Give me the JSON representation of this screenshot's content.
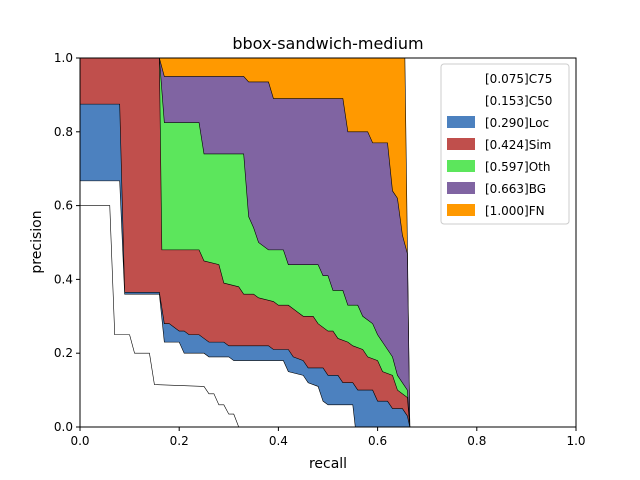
{
  "chart_data": {
    "type": "area",
    "title": "bbox-sandwich-medium",
    "xlabel": "recall",
    "ylabel": "precision",
    "xlim": [
      0,
      1
    ],
    "ylim": [
      0,
      1
    ],
    "x_ticks": [
      "0.0",
      "0.2",
      "0.4",
      "0.6",
      "0.8",
      "1.0"
    ],
    "y_ticks": [
      "0.0",
      "0.2",
      "0.4",
      "0.6",
      "0.8",
      "1.0"
    ],
    "grid": false,
    "legend_position": "top-right",
    "series": [
      {
        "name": "[0.075]C75",
        "color": "#ffffff",
        "points": [
          [
            0,
            0.6
          ],
          [
            0.06,
            0.6
          ],
          [
            0.07,
            0.25
          ],
          [
            0.1,
            0.25
          ],
          [
            0.11,
            0.2
          ],
          [
            0.14,
            0.2
          ],
          [
            0.15,
            0.115
          ],
          [
            0.25,
            0.11
          ],
          [
            0.26,
            0.09
          ],
          [
            0.27,
            0.09
          ],
          [
            0.28,
            0.06
          ],
          [
            0.29,
            0.06
          ],
          [
            0.3,
            0.035
          ],
          [
            0.31,
            0.035
          ],
          [
            0.32,
            0.0
          ]
        ]
      },
      {
        "name": "[0.153]C50",
        "color": "#ffffff",
        "points": [
          [
            0,
            0.667
          ],
          [
            0.08,
            0.667
          ],
          [
            0.09,
            0.36
          ],
          [
            0.16,
            0.36
          ],
          [
            0.17,
            0.23
          ],
          [
            0.2,
            0.23
          ],
          [
            0.21,
            0.2
          ],
          [
            0.25,
            0.2
          ],
          [
            0.26,
            0.19
          ],
          [
            0.3,
            0.19
          ],
          [
            0.31,
            0.18
          ],
          [
            0.41,
            0.18
          ],
          [
            0.42,
            0.15
          ],
          [
            0.45,
            0.14
          ],
          [
            0.46,
            0.12
          ],
          [
            0.48,
            0.11
          ],
          [
            0.49,
            0.07
          ],
          [
            0.5,
            0.06
          ],
          [
            0.55,
            0.06
          ],
          [
            0.555,
            0.0
          ]
        ]
      },
      {
        "name": "[0.290]Loc",
        "color": "#4c81bf",
        "points": [
          [
            0,
            0.875
          ],
          [
            0.08,
            0.875
          ],
          [
            0.09,
            0.365
          ],
          [
            0.16,
            0.365
          ],
          [
            0.17,
            0.28
          ],
          [
            0.18,
            0.28
          ],
          [
            0.19,
            0.27
          ],
          [
            0.2,
            0.26
          ],
          [
            0.21,
            0.26
          ],
          [
            0.22,
            0.25
          ],
          [
            0.24,
            0.25
          ],
          [
            0.25,
            0.24
          ],
          [
            0.26,
            0.23
          ],
          [
            0.29,
            0.23
          ],
          [
            0.3,
            0.22
          ],
          [
            0.38,
            0.22
          ],
          [
            0.39,
            0.21
          ],
          [
            0.42,
            0.21
          ],
          [
            0.43,
            0.19
          ],
          [
            0.45,
            0.18
          ],
          [
            0.46,
            0.16
          ],
          [
            0.49,
            0.16
          ],
          [
            0.5,
            0.14
          ],
          [
            0.52,
            0.14
          ],
          [
            0.53,
            0.12
          ],
          [
            0.55,
            0.12
          ],
          [
            0.56,
            0.1
          ],
          [
            0.59,
            0.1
          ],
          [
            0.6,
            0.07
          ],
          [
            0.62,
            0.07
          ],
          [
            0.63,
            0.05
          ],
          [
            0.65,
            0.05
          ],
          [
            0.66,
            0.03
          ],
          [
            0.665,
            0.0
          ]
        ]
      },
      {
        "name": "[0.424]Sim",
        "color": "#c04f4c",
        "points": [
          [
            0,
            1.0
          ],
          [
            0.16,
            1.0
          ],
          [
            0.165,
            0.48
          ],
          [
            0.24,
            0.48
          ],
          [
            0.25,
            0.45
          ],
          [
            0.28,
            0.44
          ],
          [
            0.29,
            0.39
          ],
          [
            0.32,
            0.38
          ],
          [
            0.33,
            0.36
          ],
          [
            0.35,
            0.36
          ],
          [
            0.36,
            0.35
          ],
          [
            0.39,
            0.34
          ],
          [
            0.4,
            0.33
          ],
          [
            0.42,
            0.33
          ],
          [
            0.43,
            0.32
          ],
          [
            0.44,
            0.31
          ],
          [
            0.45,
            0.3
          ],
          [
            0.47,
            0.3
          ],
          [
            0.48,
            0.28
          ],
          [
            0.5,
            0.26
          ],
          [
            0.51,
            0.26
          ],
          [
            0.52,
            0.24
          ],
          [
            0.54,
            0.23
          ],
          [
            0.55,
            0.22
          ],
          [
            0.57,
            0.21
          ],
          [
            0.58,
            0.19
          ],
          [
            0.6,
            0.18
          ],
          [
            0.61,
            0.15
          ],
          [
            0.63,
            0.14
          ],
          [
            0.64,
            0.1
          ],
          [
            0.66,
            0.08
          ],
          [
            0.665,
            0.0
          ]
        ]
      },
      {
        "name": "[0.597]Oth",
        "color": "#5ce65c",
        "points": [
          [
            0,
            1.0
          ],
          [
            0.16,
            1.0
          ],
          [
            0.17,
            0.825
          ],
          [
            0.24,
            0.825
          ],
          [
            0.25,
            0.74
          ],
          [
            0.33,
            0.74
          ],
          [
            0.34,
            0.57
          ],
          [
            0.35,
            0.54
          ],
          [
            0.36,
            0.5
          ],
          [
            0.38,
            0.48
          ],
          [
            0.41,
            0.48
          ],
          [
            0.42,
            0.44
          ],
          [
            0.48,
            0.44
          ],
          [
            0.49,
            0.41
          ],
          [
            0.5,
            0.41
          ],
          [
            0.51,
            0.37
          ],
          [
            0.53,
            0.37
          ],
          [
            0.54,
            0.33
          ],
          [
            0.56,
            0.33
          ],
          [
            0.57,
            0.3
          ],
          [
            0.59,
            0.28
          ],
          [
            0.6,
            0.25
          ],
          [
            0.61,
            0.23
          ],
          [
            0.62,
            0.21
          ],
          [
            0.63,
            0.19
          ],
          [
            0.64,
            0.14
          ],
          [
            0.66,
            0.1
          ],
          [
            0.665,
            0.0
          ]
        ]
      },
      {
        "name": "[0.663]BG",
        "color": "#8064a2",
        "points": [
          [
            0,
            1.0
          ],
          [
            0.16,
            1.0
          ],
          [
            0.17,
            0.95
          ],
          [
            0.33,
            0.95
          ],
          [
            0.34,
            0.935
          ],
          [
            0.38,
            0.935
          ],
          [
            0.39,
            0.89
          ],
          [
            0.53,
            0.89
          ],
          [
            0.54,
            0.8
          ],
          [
            0.58,
            0.8
          ],
          [
            0.59,
            0.77
          ],
          [
            0.62,
            0.77
          ],
          [
            0.63,
            0.64
          ],
          [
            0.64,
            0.62
          ],
          [
            0.65,
            0.52
          ],
          [
            0.66,
            0.47
          ],
          [
            0.665,
            0.0
          ]
        ]
      },
      {
        "name": "[1.000]FN",
        "color": "#ff9900",
        "points": [
          [
            0,
            1.0
          ],
          [
            0.655,
            1.0
          ],
          [
            0.665,
            0.0
          ]
        ]
      }
    ]
  }
}
